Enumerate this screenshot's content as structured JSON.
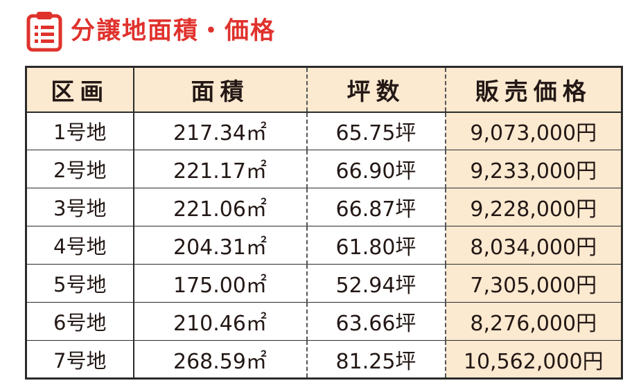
{
  "title": "分譲地面積・価格",
  "table": {
    "headers": {
      "lot": "区画",
      "area": "面積",
      "tsubo": "坪数",
      "price": "販売価格"
    },
    "rows": [
      {
        "lot": "1号地",
        "area": "217.34㎡",
        "tsubo": "65.75坪",
        "price": "9,073,000円"
      },
      {
        "lot": "2号地",
        "area": "221.17㎡",
        "tsubo": "66.90坪",
        "price": "9,233,000円"
      },
      {
        "lot": "3号地",
        "area": "221.06㎡",
        "tsubo": "66.87坪",
        "price": "9,228,000円"
      },
      {
        "lot": "4号地",
        "area": "204.31㎡",
        "tsubo": "61.80坪",
        "price": "8,034,000円"
      },
      {
        "lot": "5号地",
        "area": "175.00㎡",
        "tsubo": "52.94坪",
        "price": "7,305,000円"
      },
      {
        "lot": "6号地",
        "area": "210.46㎡",
        "tsubo": "63.66坪",
        "price": "8,276,000円"
      },
      {
        "lot": "7号地",
        "area": "268.59㎡",
        "tsubo": "81.25坪",
        "price": "10,562,000円"
      }
    ]
  },
  "colors": {
    "title": "#e0322d",
    "header_bg": "#fbe9d0",
    "price_bg": "#fbe9d0",
    "border": "#2a2a2a"
  },
  "icons": {
    "title_icon": "clipboard-list-icon"
  }
}
